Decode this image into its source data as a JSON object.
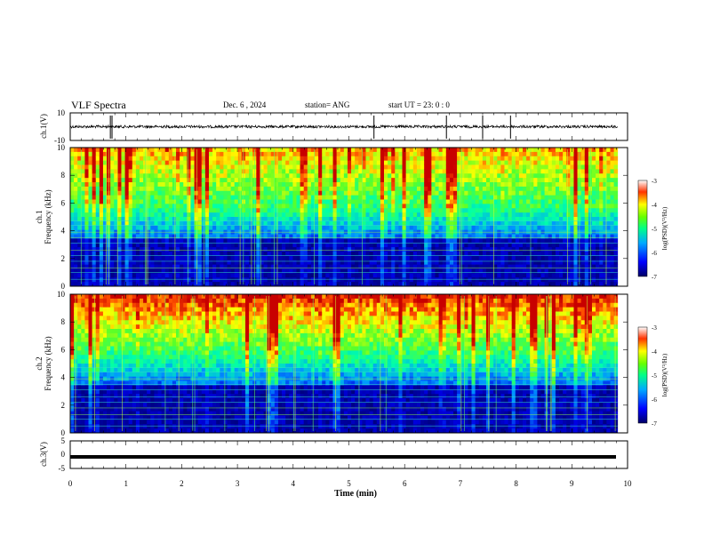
{
  "header": {
    "title": "VLF Spectra",
    "date": "Dec. 6 , 2024",
    "station": "station= ANG",
    "start": "start UT = 23: 0 : 0"
  },
  "chart_data": [
    {
      "type": "line",
      "name": "ch1-waveform",
      "ylabel": "ch.1(V)",
      "ylim": [
        -10,
        10
      ],
      "yticks": [
        "10",
        "-10"
      ],
      "xlim": [
        0,
        10
      ],
      "baseline": 0,
      "notable_spikes_min": [
        0.72,
        0.75,
        5.45,
        6.75,
        7.4,
        7.9
      ]
    },
    {
      "type": "heatmap",
      "name": "ch1-spectrogram",
      "channel_label": "ch.1",
      "ylabel": "Frequency (kHz)",
      "ylim": [
        0,
        10
      ],
      "yticks": [
        "0",
        "2",
        "4",
        "6",
        "8",
        "10"
      ],
      "xlim": [
        0,
        10
      ],
      "data_end_min": 9.82,
      "colorbar": {
        "label": "log(PSD)(V²/Hz)",
        "min": -7,
        "max": -3,
        "ticks": [
          "-3",
          "-4",
          "-5",
          "-6",
          "-7"
        ]
      }
    },
    {
      "type": "heatmap",
      "name": "ch2-spectrogram",
      "channel_label": "ch.2",
      "ylabel": "Frequency (kHz)",
      "ylim": [
        0,
        10
      ],
      "yticks": [
        "0",
        "2",
        "4",
        "6",
        "8",
        "10"
      ],
      "xlim": [
        0,
        10
      ],
      "data_end_min": 9.82,
      "colorbar": {
        "label": "log(PSD)(V²/Hz)",
        "min": -7,
        "max": -3,
        "ticks": [
          "-3",
          "-4",
          "-5",
          "-6",
          "-7"
        ]
      }
    },
    {
      "type": "line",
      "name": "ch3-waveform",
      "ylabel": "ch.3(V)",
      "ylim": [
        -5,
        5
      ],
      "yticks": [
        "5",
        "0",
        "-5"
      ],
      "xlim": [
        0,
        10
      ],
      "level": -0.8
    }
  ],
  "xaxis": {
    "label": "Time (min)",
    "ticks": [
      "0",
      "1",
      "2",
      "3",
      "4",
      "5",
      "6",
      "7",
      "8",
      "9",
      "10"
    ]
  }
}
